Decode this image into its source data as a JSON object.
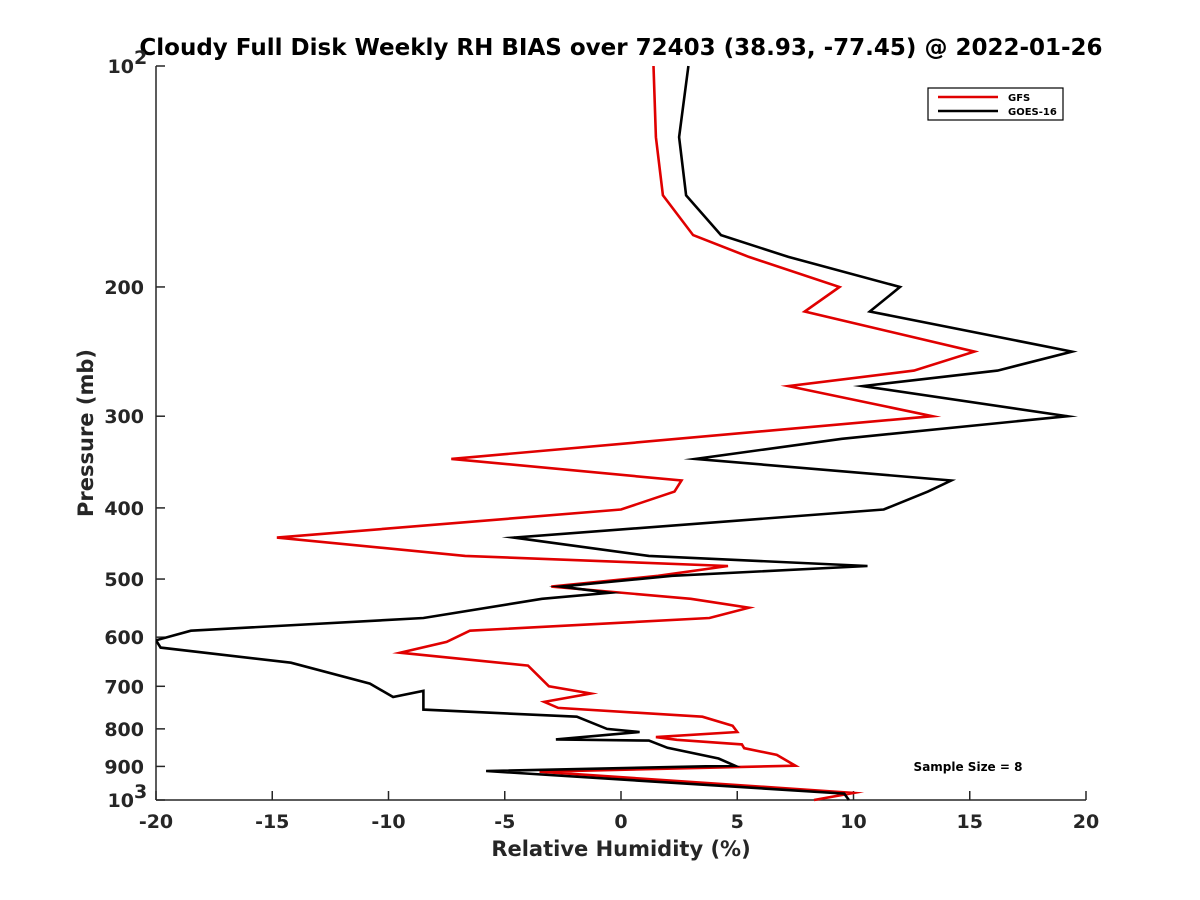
{
  "chart_data": {
    "type": "line",
    "title": "Cloudy Full Disk Weekly RH BIAS over 72403 (38.93, -77.45) @ 2022-01-26",
    "xlabel": "Relative Humidity (%)",
    "ylabel": "Pressure (mb)",
    "xlim": [
      -20,
      20
    ],
    "ylim": [
      100,
      1000
    ],
    "y_scale": "log",
    "y_reversed": true,
    "xticks": [
      -20,
      -15,
      -10,
      -5,
      0,
      5,
      10,
      15,
      20
    ],
    "xtick_labels": [
      "-20",
      "-15",
      "-10",
      "-5",
      "0",
      "5",
      "10",
      "15",
      "20"
    ],
    "yticks": [
      {
        "value": 100,
        "base": "10",
        "exp": "2"
      },
      {
        "value": 200,
        "label": "200"
      },
      {
        "value": 300,
        "label": "300"
      },
      {
        "value": 400,
        "label": "400"
      },
      {
        "value": 500,
        "label": "500"
      },
      {
        "value": 600,
        "label": "600"
      },
      {
        "value": 700,
        "label": "700"
      },
      {
        "value": 800,
        "label": "800"
      },
      {
        "value": 900,
        "label": "900"
      },
      {
        "value": 1000,
        "base": "10",
        "exp": "3"
      }
    ],
    "grid": false,
    "legend_position": "top-right",
    "annotation": "Sample Size = 8",
    "series": [
      {
        "name": "GFS",
        "color": "#e00000",
        "points": [
          [
            1.4,
            100
          ],
          [
            1.5,
            125
          ],
          [
            1.8,
            150
          ],
          [
            3.1,
            170
          ],
          [
            5.5,
            182
          ],
          [
            9.4,
            200
          ],
          [
            7.9,
            216
          ],
          [
            15.2,
            245
          ],
          [
            12.6,
            260
          ],
          [
            7.2,
            273
          ],
          [
            13.4,
            300
          ],
          [
            -7.3,
            343
          ],
          [
            2.6,
            367
          ],
          [
            2.3,
            380
          ],
          [
            0,
            402
          ],
          [
            -14.8,
            439
          ],
          [
            -6.7,
            465
          ],
          [
            4.6,
            480
          ],
          [
            1.6,
            495
          ],
          [
            -3,
            512
          ],
          [
            3,
            532
          ],
          [
            5.5,
            547
          ],
          [
            3.8,
            565
          ],
          [
            -6.5,
            588
          ],
          [
            -7.5,
            609
          ],
          [
            -9.5,
            630
          ],
          [
            -4,
            656
          ],
          [
            -3.5,
            680
          ],
          [
            -3.1,
            700
          ],
          [
            -1.3,
            716
          ],
          [
            -3.3,
            735
          ],
          [
            -2.7,
            749
          ],
          [
            3.5,
            770
          ],
          [
            4.8,
            792
          ],
          [
            5,
            808
          ],
          [
            1.5,
            821
          ],
          [
            2.4,
            828
          ],
          [
            5.2,
            840
          ],
          [
            5.3,
            850
          ],
          [
            6.7,
            868
          ],
          [
            7.5,
            898
          ],
          [
            -3.5,
            915
          ],
          [
            10,
            978
          ],
          [
            8.3,
            1000
          ]
        ]
      },
      {
        "name": "GOES-16",
        "color": "#000000",
        "points": [
          [
            2.9,
            100
          ],
          [
            2.5,
            125
          ],
          [
            2.8,
            150
          ],
          [
            4.3,
            170
          ],
          [
            7.2,
            182
          ],
          [
            12,
            200
          ],
          [
            10.7,
            216
          ],
          [
            19.4,
            245
          ],
          [
            16.2,
            260
          ],
          [
            10.4,
            273
          ],
          [
            19.2,
            300
          ],
          [
            9.5,
            322
          ],
          [
            3.2,
            343
          ],
          [
            14.2,
            367
          ],
          [
            13.2,
            380
          ],
          [
            11.3,
            402
          ],
          [
            -4.6,
            439
          ],
          [
            1.2,
            465
          ],
          [
            10.6,
            480
          ],
          [
            2.2,
            495
          ],
          [
            -2.6,
            512
          ],
          [
            -0.5,
            522
          ],
          [
            -3.4,
            532
          ],
          [
            -8.5,
            565
          ],
          [
            -18.5,
            588
          ],
          [
            -20,
            606
          ],
          [
            -19.8,
            620
          ],
          [
            -14.2,
            650
          ],
          [
            -10.8,
            694
          ],
          [
            -9.8,
            724
          ],
          [
            -8.5,
            710
          ],
          [
            -8.5,
            753
          ],
          [
            -1.9,
            770
          ],
          [
            -0.6,
            800
          ],
          [
            0.8,
            808
          ],
          [
            -2.8,
            827
          ],
          [
            1.2,
            830
          ],
          [
            2,
            849
          ],
          [
            4.2,
            878
          ],
          [
            4.9,
            898
          ],
          [
            -5.8,
            913
          ],
          [
            9.6,
            980
          ],
          [
            9.8,
            1000
          ]
        ]
      }
    ]
  }
}
